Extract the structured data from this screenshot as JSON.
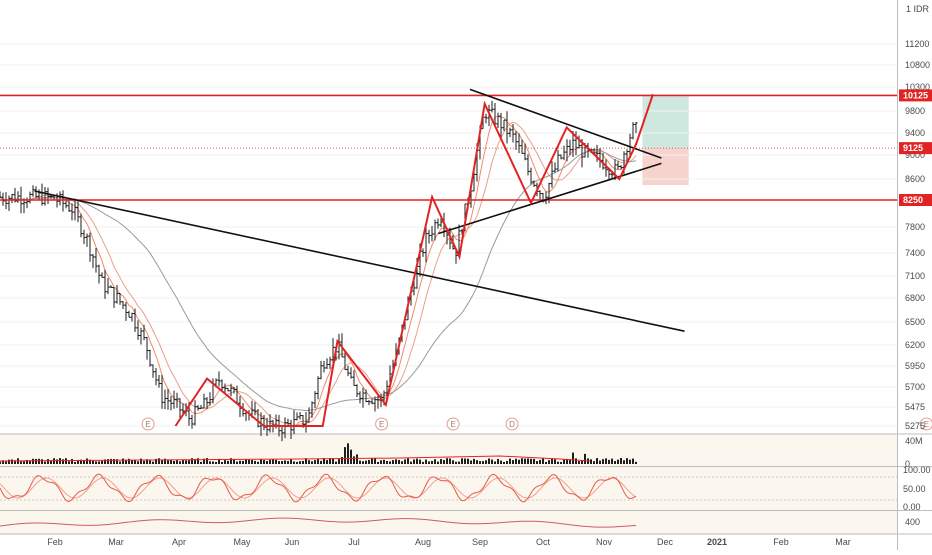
{
  "currency_label": "1 IDR",
  "colors": {
    "accent_red": "#e02424",
    "price_bar": "#1e1e1e",
    "ema_fast": "#f08a6a",
    "ema_mid": "#e9a08a",
    "sma_slow": "#9a9a9a",
    "volume_bar": "#1e1e1e",
    "stoch_k": "#e85a4a",
    "stoch_d": "#f0a090",
    "rsi_line": "#d05a6a",
    "target_zone": "#cfe8df",
    "stop_zone": "#f6d3cd",
    "trendline": "#111111",
    "pane_bg": "#fcf7ee"
  },
  "chart_data": [
    {
      "type": "ohlc",
      "name": "price",
      "y_ticks": [
        11200,
        10800,
        10300,
        9800,
        9400,
        9000,
        8600,
        7800,
        7400,
        7100,
        6800,
        6500,
        6200,
        5950,
        5700,
        5475,
        5275
      ],
      "price_tags": [
        {
          "value": 10125,
          "label": "10125"
        },
        {
          "value": 9125,
          "label": "9125"
        },
        {
          "value": 8250,
          "label": "8250"
        }
      ],
      "horizontal_lines": [
        10125,
        8250
      ],
      "x_labels": [
        "Feb",
        "Mar",
        "Apr",
        "May",
        "Jun",
        "Jul",
        "Aug",
        "Sep",
        "Oct",
        "Nov",
        "Dec",
        "2021",
        "Feb",
        "Mar"
      ],
      "events": [
        "E",
        "E",
        "E",
        "D",
        "E"
      ],
      "position_zones": {
        "target": [
          9125,
          10125
        ],
        "stop": [
          8500,
          9125
        ]
      },
      "close_path": [
        [
          "2020-01-20",
          8300
        ],
        [
          "2020-01-27",
          8250
        ],
        [
          "2020-02-03",
          8100
        ],
        [
          "2020-02-10",
          7600
        ],
        [
          "2020-02-17",
          7000
        ],
        [
          "2020-02-24",
          6800
        ],
        [
          "2020-03-02",
          6600
        ],
        [
          "2020-03-09",
          6200
        ],
        [
          "2020-03-16",
          5600
        ],
        [
          "2020-03-23",
          5500
        ],
        [
          "2020-03-30",
          5350
        ],
        [
          "2020-04-06",
          5500
        ],
        [
          "2020-04-13",
          5800
        ],
        [
          "2020-04-20",
          5600
        ],
        [
          "2020-04-27",
          5400
        ],
        [
          "2020-05-04",
          5300
        ],
        [
          "2020-05-11",
          5250
        ],
        [
          "2020-05-18",
          5300
        ],
        [
          "2020-05-25",
          5350
        ],
        [
          "2020-06-01",
          6000
        ],
        [
          "2020-06-08",
          6200
        ],
        [
          "2020-06-15",
          5700
        ],
        [
          "2020-06-22",
          5600
        ],
        [
          "2020-06-29",
          5550
        ],
        [
          "2020-07-06",
          6100
        ],
        [
          "2020-07-13",
          6900
        ],
        [
          "2020-07-20",
          7600
        ],
        [
          "2020-07-27",
          8000
        ],
        [
          "2020-08-03",
          7400
        ],
        [
          "2020-08-10",
          8400
        ],
        [
          "2020-08-17",
          9800
        ],
        [
          "2020-08-24",
          9600
        ],
        [
          "2020-08-31",
          9300
        ],
        [
          "2020-09-07",
          8700
        ],
        [
          "2020-09-14",
          8300
        ],
        [
          "2020-09-21",
          8900
        ],
        [
          "2020-09-28",
          9200
        ],
        [
          "2020-10-05",
          9000
        ],
        [
          "2020-10-12",
          8900
        ],
        [
          "2020-10-19",
          8700
        ],
        [
          "2020-10-26",
          9450
        ]
      ],
      "trendlines": [
        {
          "from": [
            "2020-01-16",
            8400
          ],
          "to": [
            "2020-11-20",
            6380
          ]
        },
        {
          "from": [
            "2020-08-10",
            10250
          ],
          "to": [
            "2020-11-09",
            8950
          ]
        },
        {
          "from": [
            "2020-07-26",
            7700
          ],
          "to": [
            "2020-11-09",
            8860
          ]
        }
      ]
    },
    {
      "type": "bar",
      "name": "volume",
      "y_ticks": [
        "40M",
        "0"
      ]
    },
    {
      "type": "line",
      "name": "stochastic",
      "y_ticks": [
        "100.00",
        "50.00",
        "0.00"
      ]
    },
    {
      "type": "line",
      "name": "oscillator",
      "y_ticks": [
        "400"
      ]
    }
  ]
}
